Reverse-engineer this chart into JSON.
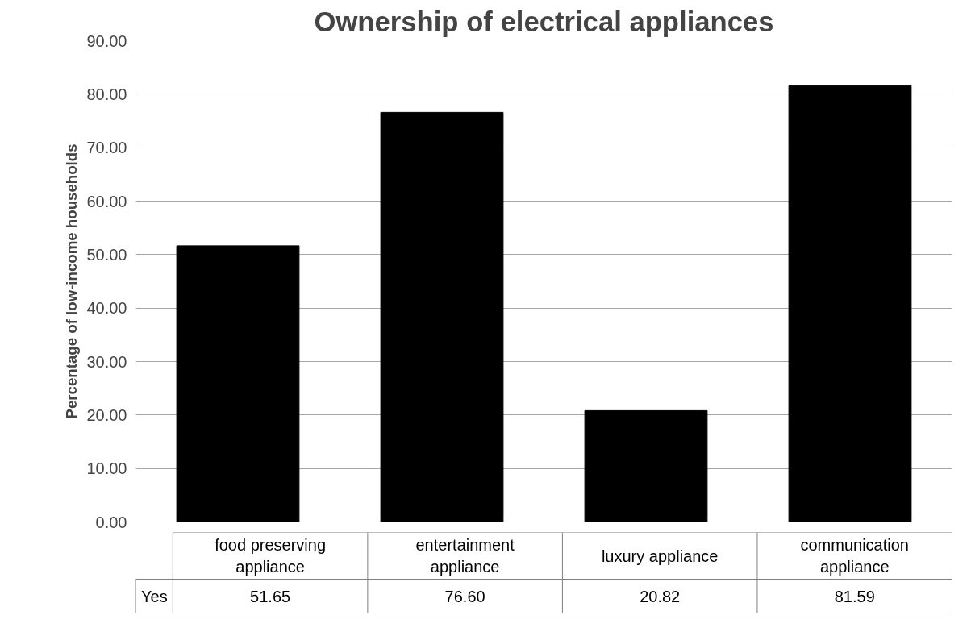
{
  "chart_data": {
    "type": "bar",
    "title": "Ownership of electrical appliances",
    "ylabel": "Percentage of low-income households",
    "categories": [
      "food preserving appliance",
      "entertainment appliance",
      "luxury appliance",
      "communication appliance"
    ],
    "series": [
      {
        "name": "Yes",
        "color": "#000000",
        "values": [
          51.65,
          76.6,
          20.82,
          81.59
        ],
        "value_labels": [
          "51.65",
          "76.60",
          "20.82",
          "81.59"
        ]
      }
    ],
    "ylim": [
      0,
      90
    ],
    "yticks": [
      {
        "value": 0,
        "label": "0.00"
      },
      {
        "value": 10,
        "label": "10.00"
      },
      {
        "value": 20,
        "label": "20.00"
      },
      {
        "value": 30,
        "label": "30.00"
      },
      {
        "value": 40,
        "label": "40.00"
      },
      {
        "value": 50,
        "label": "50.00"
      },
      {
        "value": 60,
        "label": "60.00"
      },
      {
        "value": 70,
        "label": "70.00"
      },
      {
        "value": 80,
        "label": "80.00"
      },
      {
        "value": 90,
        "label": "90.00"
      }
    ],
    "grid": "y"
  }
}
